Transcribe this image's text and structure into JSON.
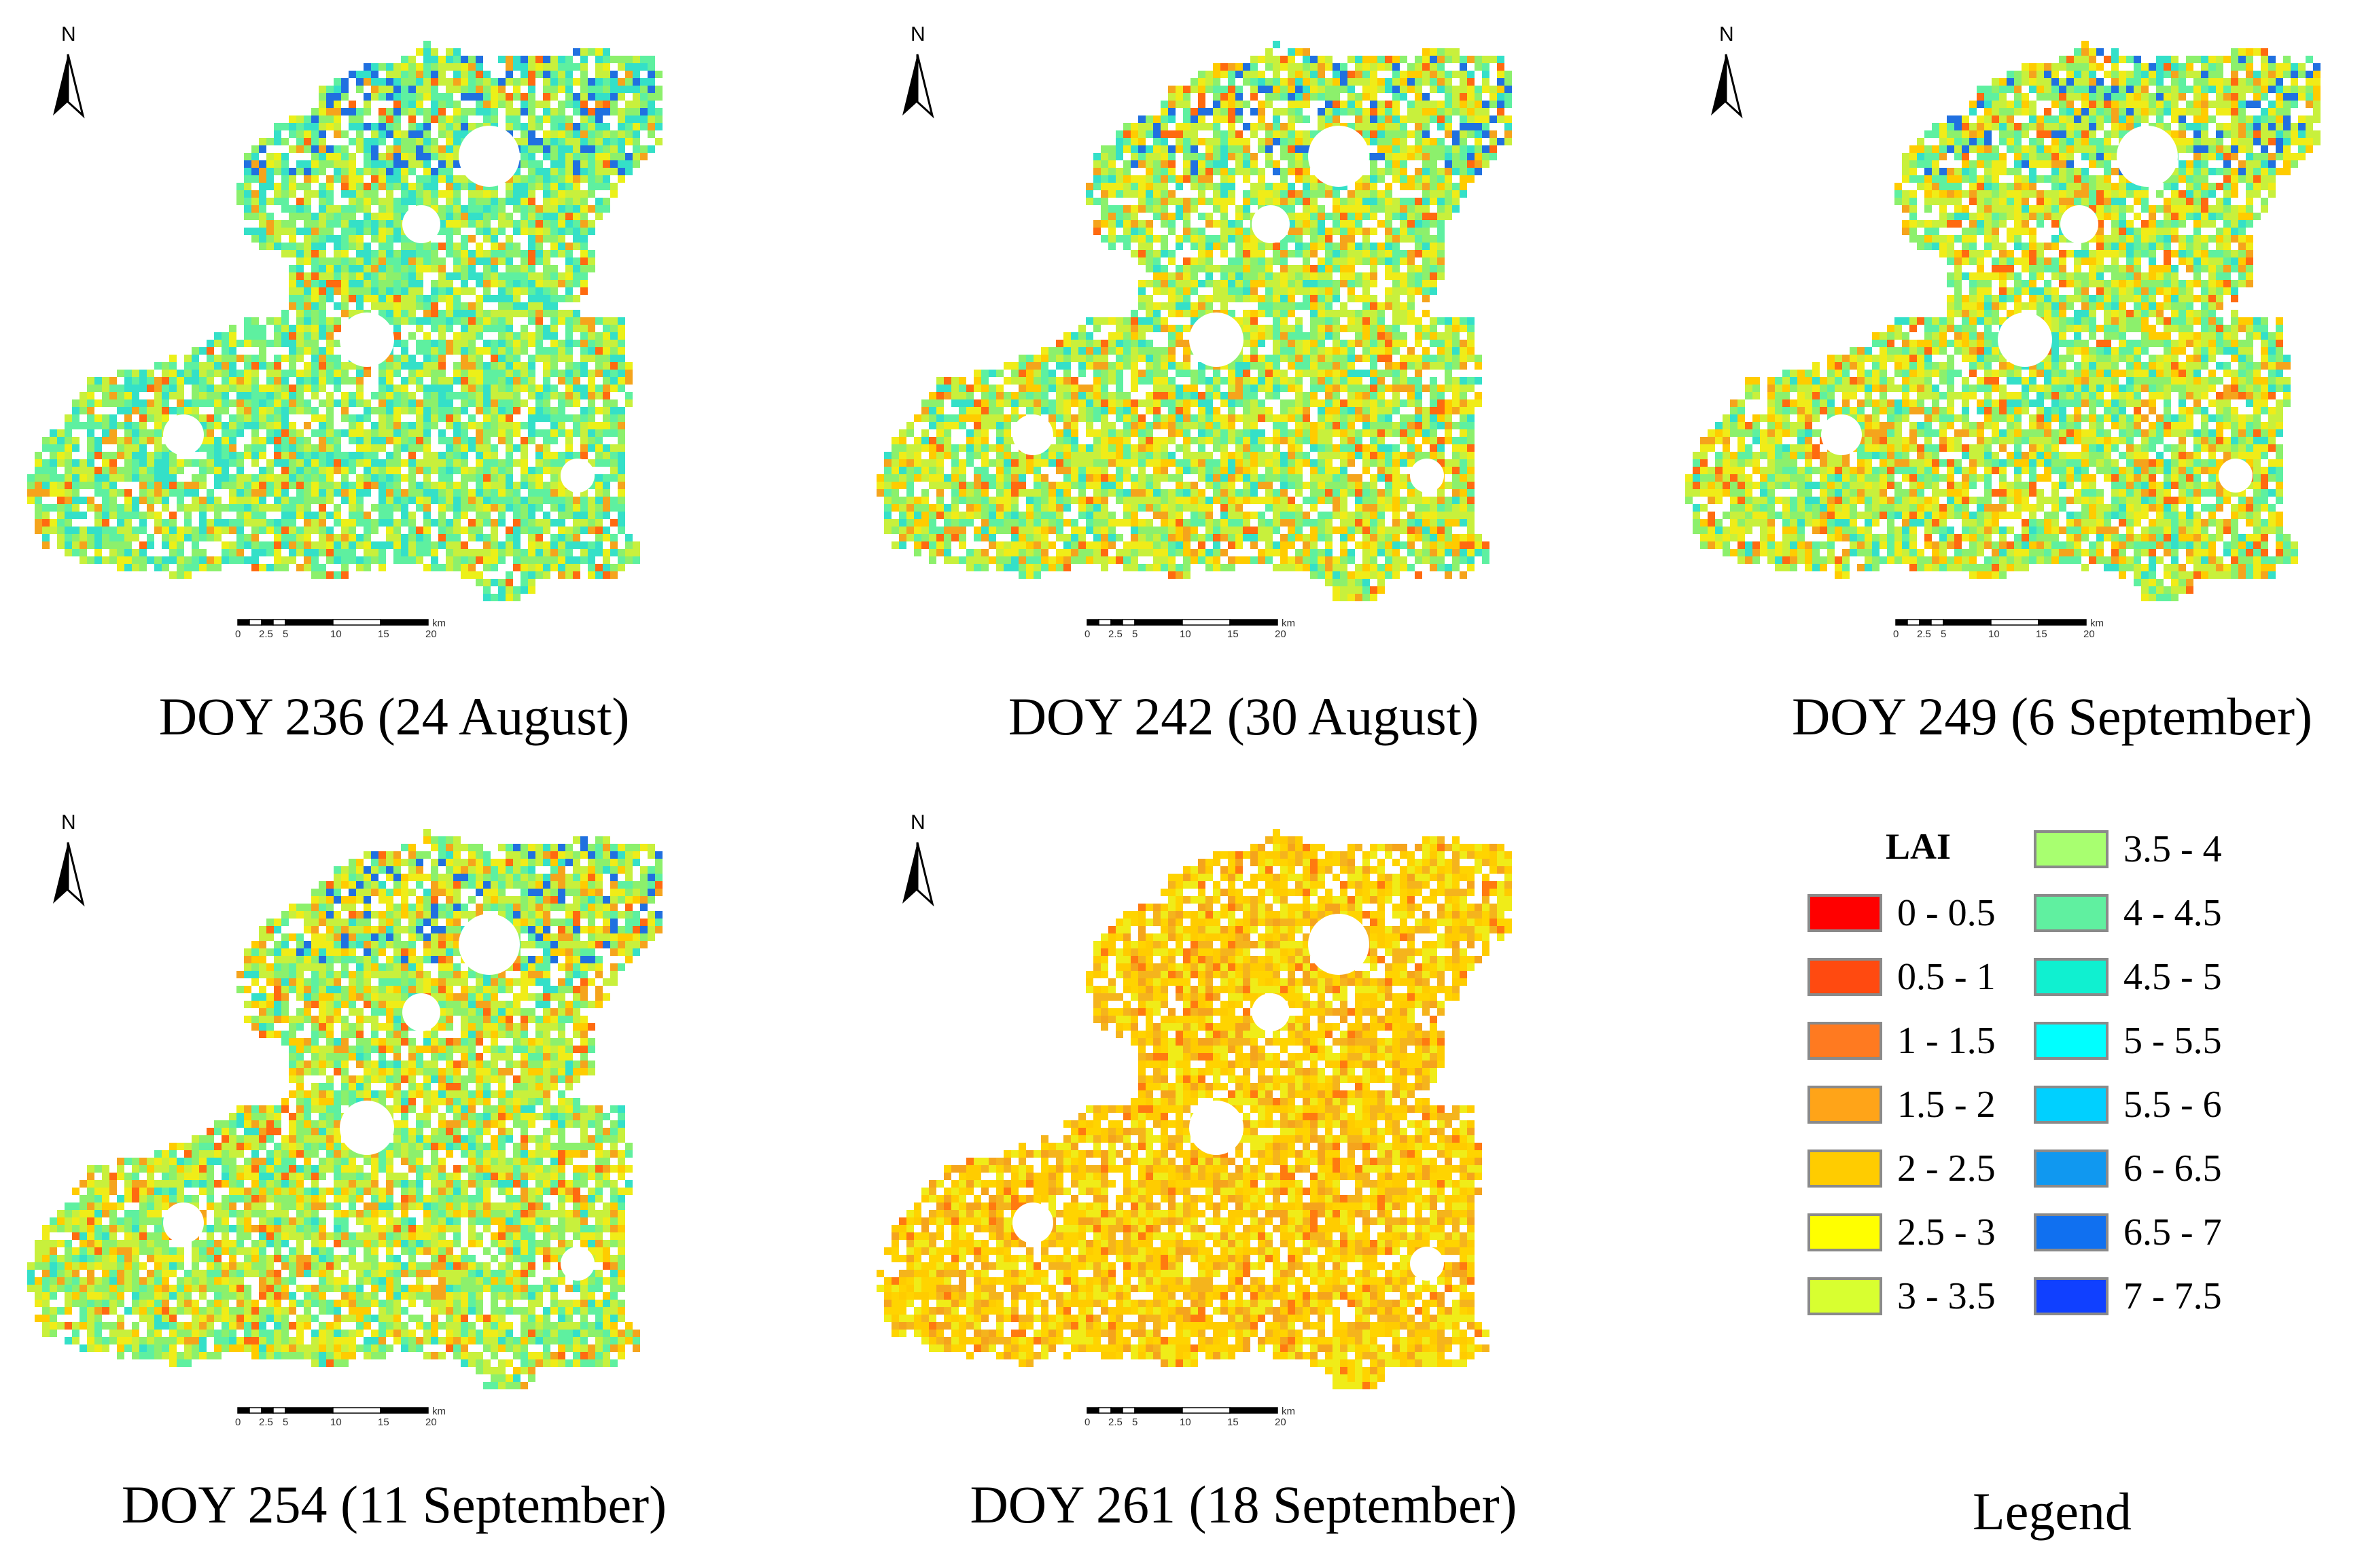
{
  "figure": {
    "north_label": "N",
    "scale_unit": "km",
    "scale_ticks": [
      "0",
      "2.5",
      "5",
      "10",
      "15",
      "20"
    ]
  },
  "panels": [
    {
      "caption": "DOY 236 (24 August)",
      "palette": [
        "#34e0c8",
        "#5ef0a0",
        "#8cf06c",
        "#c8f03c",
        "#ecf018",
        "#f5a41c",
        "#ff6a10"
      ],
      "weights": [
        20,
        20,
        20,
        20,
        10,
        6,
        4
      ]
    },
    {
      "caption": "DOY 242 (30 August)",
      "palette": [
        "#34e0c8",
        "#5ef0a0",
        "#8cf06c",
        "#c8f03c",
        "#f0ec18",
        "#ffcc00",
        "#f5a41c",
        "#ff6a10"
      ],
      "weights": [
        8,
        14,
        18,
        22,
        16,
        10,
        7,
        5
      ]
    },
    {
      "caption": "DOY 249 (6 September)",
      "palette": [
        "#34e0c8",
        "#5ef0a0",
        "#8cf06c",
        "#c8f03c",
        "#f0ec18",
        "#ffcc00",
        "#f5a41c",
        "#ff6a10"
      ],
      "weights": [
        8,
        14,
        18,
        22,
        16,
        10,
        7,
        5
      ]
    },
    {
      "caption": "DOY 254 (11 September)",
      "palette": [
        "#34e0c8",
        "#5ef0a0",
        "#8cf06c",
        "#c8f03c",
        "#f0ec18",
        "#ffcc00",
        "#f5a41c",
        "#ff6a10"
      ],
      "weights": [
        6,
        14,
        22,
        24,
        14,
        9,
        7,
        4
      ]
    },
    {
      "caption": "DOY 261 (18 September)",
      "palette": [
        "#f0ec18",
        "#ffd400",
        "#ffcc00",
        "#f5b41c",
        "#f5a41c",
        "#ff7a10"
      ],
      "weights": [
        22,
        24,
        22,
        16,
        10,
        6
      ]
    }
  ],
  "legend": {
    "title": "LAI",
    "caption": "Legend",
    "items": [
      {
        "label": "0 - 0.5",
        "color": "#ff0000"
      },
      {
        "label": "0.5 - 1",
        "color": "#ff4a10"
      },
      {
        "label": "1 - 1.5",
        "color": "#ff7a20"
      },
      {
        "label": "1.5 - 2",
        "color": "#ffa418"
      },
      {
        "label": "2 - 2.5",
        "color": "#ffcc00"
      },
      {
        "label": "2.5 - 3",
        "color": "#ffff00"
      },
      {
        "label": "3 - 3.5",
        "color": "#d8ff30"
      },
      {
        "label": "3.5 - 4",
        "color": "#a8ff70"
      },
      {
        "label": "4 - 4.5",
        "color": "#60f0a0"
      },
      {
        "label": "4.5 - 5",
        "color": "#10f0d0"
      },
      {
        "label": "5 - 5.5",
        "color": "#00ffff"
      },
      {
        "label": "5.5 - 6",
        "color": "#00d0ff"
      },
      {
        "label": "6 - 6.5",
        "color": "#1098f0"
      },
      {
        "label": "6.5 - 7",
        "color": "#1070f0"
      },
      {
        "label": "7 - 7.5",
        "color": "#1040ff"
      }
    ]
  }
}
